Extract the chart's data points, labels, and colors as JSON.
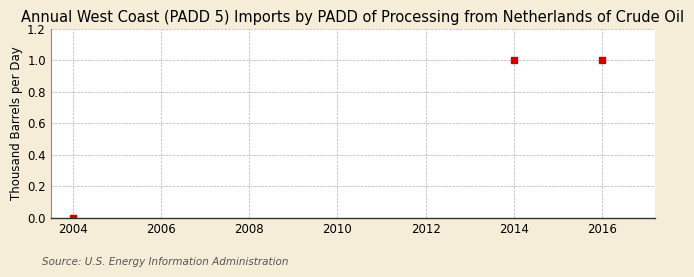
{
  "title": "Annual West Coast (PADD 5) Imports by PADD of Processing from Netherlands of Crude Oil",
  "ylabel": "Thousand Barrels per Day",
  "source_text": "Source: U.S. Energy Information Administration",
  "x_data": [
    2004,
    2014,
    2016
  ],
  "y_data": [
    0.0,
    1.0,
    1.0
  ],
  "marker_color": "#cc0000",
  "marker_size": 4,
  "xlim": [
    2003.5,
    2017.2
  ],
  "ylim": [
    0.0,
    1.2
  ],
  "xticks": [
    2004,
    2006,
    2008,
    2010,
    2012,
    2014,
    2016
  ],
  "yticks": [
    0.0,
    0.2,
    0.4,
    0.6,
    0.8,
    1.0,
    1.2
  ],
  "background_color": "#f5edd8",
  "plot_bg_color": "#ffffff",
  "grid_color": "#aaaaaa",
  "title_fontsize": 10.5,
  "axis_label_fontsize": 8.5,
  "tick_fontsize": 8.5,
  "source_fontsize": 7.5
}
